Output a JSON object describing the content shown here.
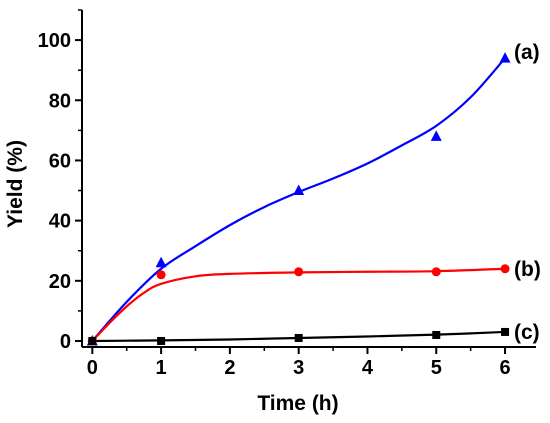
{
  "chart_data": {
    "type": "scatter",
    "xlabel": "Time (h)",
    "ylabel": "Yield (%)",
    "xlim": [
      -0.15,
      6.45
    ],
    "ylim": [
      -2,
      110
    ],
    "xticks": [
      0,
      1,
      2,
      3,
      4,
      5,
      6
    ],
    "yticks": [
      0,
      20,
      40,
      60,
      80,
      100
    ],
    "xtick_labels": [
      "0",
      "1",
      "2",
      "3",
      "4",
      "5",
      "6"
    ],
    "ytick_labels": [
      "0",
      "20",
      "40",
      "60",
      "80",
      "100"
    ],
    "grid": false,
    "legend": "none",
    "series": [
      {
        "name": "(a)",
        "marker": "triangle",
        "color": "#0000ff",
        "points": [
          [
            0,
            0
          ],
          [
            1,
            26
          ],
          [
            3,
            50
          ],
          [
            5,
            68
          ],
          [
            6,
            94
          ]
        ],
        "fit": [
          [
            0,
            0
          ],
          [
            0.5,
            13
          ],
          [
            1,
            24
          ],
          [
            1.5,
            31.5
          ],
          [
            2,
            38.5
          ],
          [
            2.5,
            44.5
          ],
          [
            3,
            49.5
          ],
          [
            3.5,
            54
          ],
          [
            4,
            59
          ],
          [
            4.5,
            65
          ],
          [
            5,
            71.5
          ],
          [
            5.5,
            81
          ],
          [
            6,
            94
          ]
        ]
      },
      {
        "name": "(b)",
        "marker": "circle",
        "color": "#ff0000",
        "points": [
          [
            0,
            0
          ],
          [
            1,
            22
          ],
          [
            3,
            23
          ],
          [
            5,
            23
          ],
          [
            6,
            24
          ]
        ],
        "fit": [
          [
            0,
            0
          ],
          [
            0.25,
            6
          ],
          [
            0.5,
            11.5
          ],
          [
            0.75,
            16
          ],
          [
            1,
            19
          ],
          [
            1.5,
            21.5
          ],
          [
            2,
            22.3
          ],
          [
            3,
            22.8
          ],
          [
            4,
            23
          ],
          [
            5,
            23.2
          ],
          [
            6,
            24
          ]
        ]
      },
      {
        "name": "(c)",
        "marker": "square",
        "color": "#000000",
        "points": [
          [
            0,
            0
          ],
          [
            1,
            0
          ],
          [
            3,
            1
          ],
          [
            5,
            2
          ],
          [
            6,
            3
          ]
        ],
        "fit": [
          [
            0,
            0
          ],
          [
            1,
            0.2
          ],
          [
            2,
            0.5
          ],
          [
            3,
            1
          ],
          [
            4,
            1.5
          ],
          [
            5,
            2.1
          ],
          [
            6,
            3
          ]
        ]
      }
    ]
  }
}
